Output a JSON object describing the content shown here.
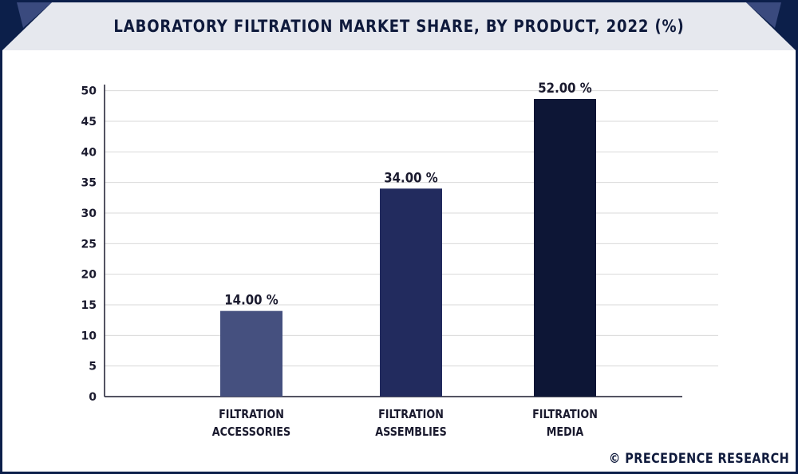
{
  "title": "LABORATORY FILTRATION MARKET SHARE, BY PRODUCT, 2022 (%)",
  "watermark": "© PRECEDENCE RESEARCH",
  "colors": {
    "bar_1": "#45507f",
    "bar_2": "#222b5e",
    "bar_3": "#0d1636",
    "frame": "#0c1f4a",
    "header_band": "#e6e8ee",
    "gridline": "#d9d9d9"
  },
  "chart_data": {
    "type": "bar",
    "title": "LABORATORY FILTRATION MARKET SHARE, BY PRODUCT, 2022 (%)",
    "categories": [
      [
        "FILTRATION",
        "ACCESSORIES"
      ],
      [
        "FILTRATION",
        "ASSEMBLIES"
      ],
      [
        "FILTRATION",
        "MEDIA"
      ]
    ],
    "values": [
      14,
      34,
      52
    ],
    "data_labels": [
      "14.00 %",
      "34.00 %",
      "52.00 %"
    ],
    "yticks": [
      0,
      5,
      10,
      15,
      20,
      25,
      30,
      35,
      40,
      45,
      50
    ],
    "ylim": [
      0,
      51
    ],
    "grid": true,
    "xlabel": "",
    "ylabel": ""
  }
}
